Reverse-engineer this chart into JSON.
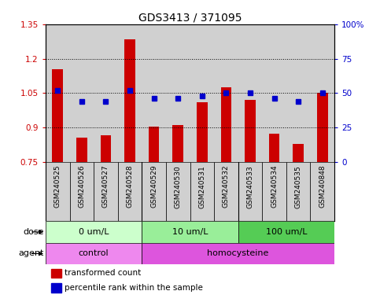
{
  "title": "GDS3413 / 371095",
  "samples": [
    "GSM240525",
    "GSM240526",
    "GSM240527",
    "GSM240528",
    "GSM240529",
    "GSM240530",
    "GSM240531",
    "GSM240532",
    "GSM240533",
    "GSM240534",
    "GSM240535",
    "GSM240848"
  ],
  "bar_values": [
    1.155,
    0.855,
    0.865,
    1.285,
    0.905,
    0.91,
    1.01,
    1.075,
    1.02,
    0.875,
    0.83,
    1.05
  ],
  "percentile_values": [
    52,
    44,
    44,
    52,
    46,
    46,
    48,
    50,
    50,
    46,
    44,
    50
  ],
  "bar_color": "#cc0000",
  "dot_color": "#0000cc",
  "ylim_left": [
    0.75,
    1.35
  ],
  "ylim_right": [
    0,
    100
  ],
  "yticks_left": [
    0.75,
    0.9,
    1.05,
    1.2,
    1.35
  ],
  "ytick_labels_left": [
    "0.75",
    "0.9",
    "1.05",
    "1.2",
    "1.35"
  ],
  "yticks_right": [
    0,
    25,
    50,
    75,
    100
  ],
  "ytick_labels_right": [
    "0",
    "25",
    "50",
    "75",
    "100%"
  ],
  "hlines": [
    0.9,
    1.05,
    1.2
  ],
  "dose_groups": [
    {
      "label": "0 um/L",
      "start": 0,
      "end": 4,
      "color": "#ccffcc"
    },
    {
      "label": "10 um/L",
      "start": 4,
      "end": 8,
      "color": "#99ee99"
    },
    {
      "label": "100 um/L",
      "start": 8,
      "end": 12,
      "color": "#55cc55"
    }
  ],
  "agent_groups": [
    {
      "label": "control",
      "start": 0,
      "end": 4,
      "color": "#ee88ee"
    },
    {
      "label": "homocysteine",
      "start": 4,
      "end": 12,
      "color": "#dd55dd"
    }
  ],
  "dose_label": "dose",
  "agent_label": "agent",
  "legend_bar_label": "transformed count",
  "legend_dot_label": "percentile rank within the sample",
  "bg_color_sample": "#d0d0d0",
  "bg_color_white": "#ffffff",
  "title_fontsize": 10,
  "tick_fontsize": 7.5,
  "sample_fontsize": 6.5,
  "label_fontsize": 8
}
